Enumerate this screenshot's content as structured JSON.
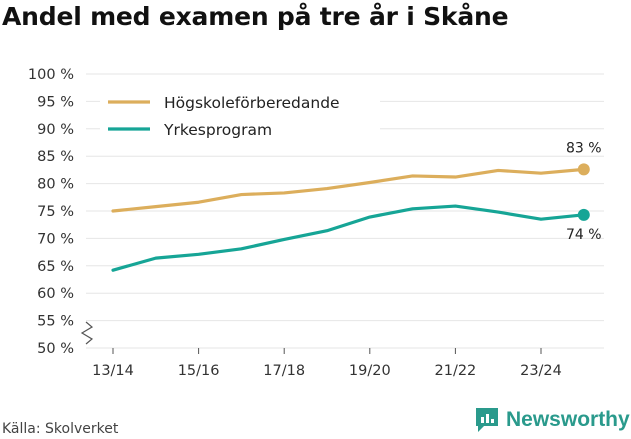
{
  "title": "Andel med examen på tre år i Skåne",
  "source": "Källa: Skolverket",
  "brand": "Newsworthy",
  "colors": {
    "series1": "#dcae5c",
    "series2": "#16a596",
    "brand": "#2a9a8c",
    "grid": "#e6e6e6"
  },
  "chart_data": {
    "type": "line",
    "x": [
      "13/14",
      "14/15",
      "15/16",
      "16/17",
      "17/18",
      "18/19",
      "19/20",
      "20/21",
      "21/22",
      "22/23",
      "23/24",
      "24/25"
    ],
    "x_tick_labels": [
      "13/14",
      "15/16",
      "17/18",
      "19/20",
      "21/22",
      "23/24"
    ],
    "y_tick_labels": [
      "50 %",
      "55 %",
      "60 %",
      "65 %",
      "70 %",
      "75 %",
      "80 %",
      "85 %",
      "90 %",
      "95 %",
      "100 %"
    ],
    "ylim": [
      50,
      100
    ],
    "y_axis_break": true,
    "grid": true,
    "legend_position": "top-left",
    "series": [
      {
        "name": "Högskoleförberedande",
        "values": [
          75.0,
          75.8,
          76.6,
          78.0,
          78.3,
          79.1,
          80.2,
          81.4,
          81.2,
          82.4,
          81.9,
          82.6
        ],
        "end_label": "83 %"
      },
      {
        "name": "Yrkesprogram",
        "values": [
          64.2,
          66.4,
          67.1,
          68.1,
          69.8,
          71.4,
          73.9,
          75.4,
          75.9,
          74.8,
          73.5,
          74.3
        ],
        "end_label": "74 %"
      }
    ]
  }
}
